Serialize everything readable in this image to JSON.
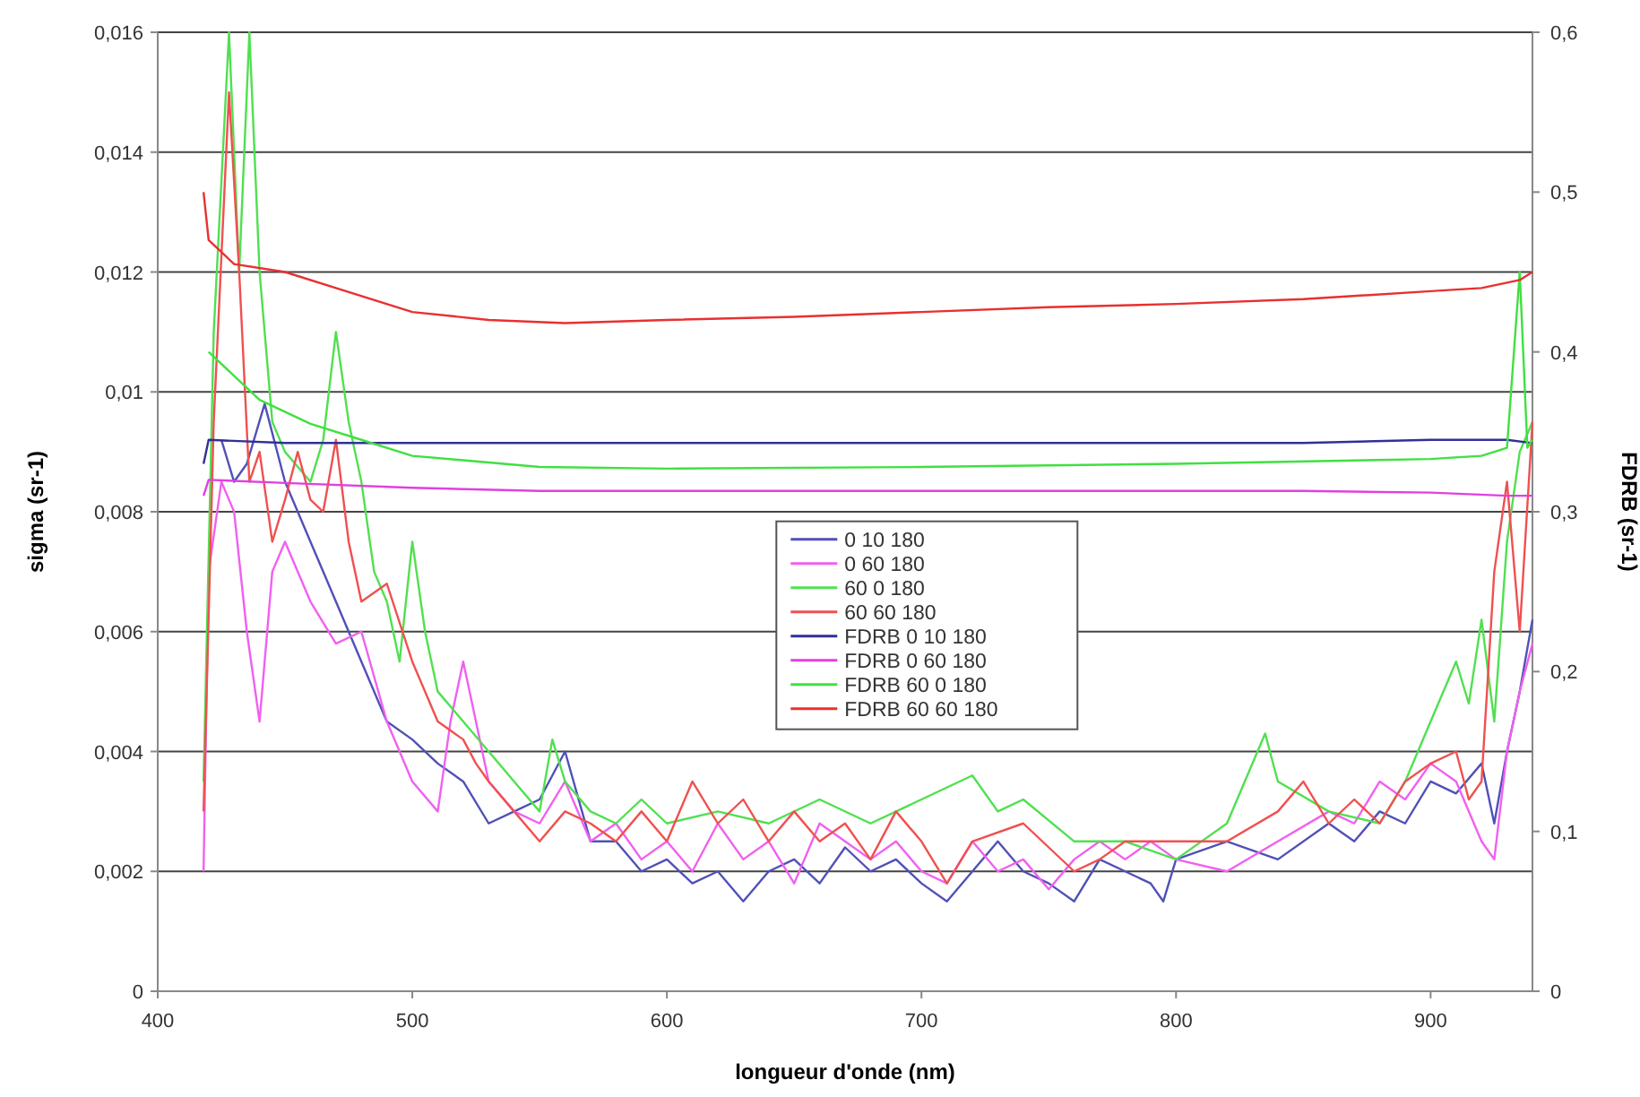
{
  "chart_data": {
    "type": "line",
    "xlabel": "longueur d'onde (nm)",
    "ylabel": "sigma (sr-1)",
    "y2label": "FDRB (sr-1)",
    "xlim": [
      400,
      940
    ],
    "xticks": [
      400,
      500,
      600,
      700,
      800,
      900
    ],
    "ylim": [
      0,
      0.016
    ],
    "yticks": [
      0,
      {
        "value": 0.002,
        "label": "0,002"
      },
      {
        "value": 0.004,
        "label": "0,004"
      },
      {
        "value": 0.006,
        "label": "0,006"
      },
      {
        "value": 0.008,
        "label": "0,008"
      },
      {
        "value": 0.01,
        "label": "0,01"
      },
      {
        "value": 0.012,
        "label": "0,012"
      },
      {
        "value": 0.014,
        "label": "0,014"
      },
      {
        "value": 0.016,
        "label": "0,016"
      }
    ],
    "y2lim": [
      0,
      0.6
    ],
    "y2ticks": [
      0,
      {
        "value": 0.1,
        "label": "0,1"
      },
      {
        "value": 0.2,
        "label": "0,2"
      },
      {
        "value": 0.3,
        "label": "0,3"
      },
      {
        "value": 0.4,
        "label": "0,4"
      },
      {
        "value": 0.5,
        "label": "0,5"
      },
      {
        "value": 0.6,
        "label": "0,6"
      }
    ],
    "grid": "y",
    "legend": "center",
    "marker": "none",
    "line_style": "solid",
    "series": [
      {
        "name": "0 10 180",
        "color": "#5050b8",
        "x": [
          425,
          430,
          435,
          442,
          450,
          460,
          470,
          480,
          490,
          500,
          510,
          520,
          530,
          540,
          550,
          560,
          570,
          580,
          590,
          600,
          610,
          620,
          630,
          640,
          650,
          660,
          670,
          680,
          690,
          700,
          710,
          720,
          730,
          740,
          750,
          760,
          770,
          780,
          790,
          795,
          800,
          820,
          840,
          860,
          870,
          880,
          890,
          900,
          910,
          920,
          925,
          930,
          935,
          940
        ],
        "values": [
          0.0092,
          0.0085,
          0.0088,
          0.0098,
          0.0085,
          0.0075,
          0.0065,
          0.0055,
          0.0045,
          0.0042,
          0.0038,
          0.0035,
          0.0028,
          0.003,
          0.0032,
          0.004,
          0.0025,
          0.0025,
          0.002,
          0.0022,
          0.0018,
          0.002,
          0.0015,
          0.002,
          0.0022,
          0.0018,
          0.0024,
          0.002,
          0.0022,
          0.0018,
          0.0015,
          0.002,
          0.0025,
          0.002,
          0.0018,
          0.0015,
          0.0022,
          0.002,
          0.0018,
          0.0015,
          0.0022,
          0.0025,
          0.0022,
          0.0028,
          0.0025,
          0.003,
          0.0028,
          0.0035,
          0.0033,
          0.0038,
          0.0028,
          0.004,
          0.005,
          0.0062
        ]
      },
      {
        "name": "0 60 180",
        "color": "#f060f0",
        "x": [
          418,
          420,
          425,
          430,
          435,
          440,
          445,
          450,
          460,
          470,
          480,
          490,
          500,
          510,
          515,
          520,
          530,
          540,
          550,
          560,
          570,
          580,
          590,
          600,
          610,
          620,
          630,
          640,
          650,
          660,
          670,
          680,
          690,
          700,
          710,
          720,
          730,
          740,
          750,
          760,
          770,
          780,
          790,
          800,
          820,
          840,
          860,
          870,
          880,
          890,
          900,
          910,
          920,
          925,
          930,
          935,
          940
        ],
        "values": [
          0.002,
          0.007,
          0.0085,
          0.008,
          0.006,
          0.0045,
          0.007,
          0.0075,
          0.0065,
          0.0058,
          0.006,
          0.0045,
          0.0035,
          0.003,
          0.0045,
          0.0055,
          0.0035,
          0.003,
          0.0028,
          0.0035,
          0.0025,
          0.0028,
          0.0022,
          0.0025,
          0.002,
          0.0028,
          0.0022,
          0.0025,
          0.0018,
          0.0028,
          0.0025,
          0.0022,
          0.0025,
          0.002,
          0.0018,
          0.0025,
          0.002,
          0.0022,
          0.0017,
          0.0022,
          0.0025,
          0.0022,
          0.0025,
          0.0022,
          0.002,
          0.0025,
          0.003,
          0.0028,
          0.0035,
          0.0032,
          0.0038,
          0.0035,
          0.0025,
          0.0022,
          0.004,
          0.005,
          0.0058
        ]
      },
      {
        "name": "60 0 180",
        "color": "#50e050",
        "x": [
          418,
          422,
          428,
          432,
          436,
          440,
          445,
          450,
          460,
          465,
          470,
          475,
          480,
          485,
          490,
          495,
          500,
          505,
          510,
          520,
          530,
          540,
          550,
          555,
          560,
          570,
          580,
          590,
          600,
          620,
          640,
          660,
          680,
          700,
          720,
          730,
          740,
          760,
          780,
          800,
          820,
          835,
          840,
          860,
          880,
          890,
          900,
          910,
          915,
          920,
          925,
          930,
          935,
          940
        ],
        "values": [
          0.0035,
          0.011,
          0.016,
          0.012,
          0.016,
          0.012,
          0.0095,
          0.009,
          0.0085,
          0.0092,
          0.011,
          0.0095,
          0.0085,
          0.007,
          0.0065,
          0.0055,
          0.0075,
          0.006,
          0.005,
          0.0045,
          0.004,
          0.0035,
          0.003,
          0.0042,
          0.0035,
          0.003,
          0.0028,
          0.0032,
          0.0028,
          0.003,
          0.0028,
          0.0032,
          0.0028,
          0.0032,
          0.0036,
          0.003,
          0.0032,
          0.0025,
          0.0025,
          0.0022,
          0.0028,
          0.0043,
          0.0035,
          0.003,
          0.0028,
          0.0035,
          0.0045,
          0.0055,
          0.0048,
          0.0062,
          0.0045,
          0.0075,
          0.009,
          0.0095
        ]
      },
      {
        "name": "60 60 180",
        "color": "#f05050",
        "x": [
          418,
          422,
          428,
          432,
          436,
          440,
          445,
          450,
          455,
          460,
          465,
          470,
          475,
          480,
          490,
          500,
          510,
          520,
          525,
          530,
          540,
          550,
          560,
          570,
          580,
          590,
          600,
          610,
          620,
          630,
          640,
          650,
          660,
          670,
          680,
          690,
          700,
          710,
          720,
          740,
          760,
          770,
          780,
          800,
          820,
          840,
          850,
          860,
          870,
          880,
          890,
          900,
          910,
          915,
          920,
          925,
          930,
          935,
          940
        ],
        "values": [
          0.003,
          0.0095,
          0.015,
          0.012,
          0.0085,
          0.009,
          0.0075,
          0.0082,
          0.009,
          0.0082,
          0.008,
          0.0092,
          0.0075,
          0.0065,
          0.0068,
          0.0055,
          0.0045,
          0.0042,
          0.0038,
          0.0035,
          0.003,
          0.0025,
          0.003,
          0.0028,
          0.0025,
          0.003,
          0.0025,
          0.0035,
          0.0028,
          0.0032,
          0.0025,
          0.003,
          0.0025,
          0.0028,
          0.0022,
          0.003,
          0.0025,
          0.0018,
          0.0025,
          0.0028,
          0.002,
          0.0022,
          0.0025,
          0.0025,
          0.0025,
          0.003,
          0.0035,
          0.0028,
          0.0032,
          0.0028,
          0.0035,
          0.0038,
          0.004,
          0.0032,
          0.0035,
          0.007,
          0.0085,
          0.006,
          0.0095
        ]
      },
      {
        "name": "FDRB 0 10 180",
        "color": "#303098",
        "axis": "y2",
        "x": [
          418,
          420,
          450,
          500,
          550,
          600,
          650,
          700,
          750,
          800,
          850,
          900,
          930,
          940
        ],
        "values": [
          0.33,
          0.345,
          0.343,
          0.343,
          0.343,
          0.343,
          0.343,
          0.343,
          0.343,
          0.343,
          0.343,
          0.345,
          0.345,
          0.343
        ]
      },
      {
        "name": "FDRB 0 60 180",
        "color": "#e040e0",
        "axis": "y2",
        "x": [
          418,
          420,
          450,
          500,
          550,
          600,
          650,
          700,
          750,
          800,
          850,
          900,
          930,
          940
        ],
        "values": [
          0.31,
          0.32,
          0.318,
          0.315,
          0.313,
          0.313,
          0.313,
          0.313,
          0.313,
          0.313,
          0.313,
          0.312,
          0.31,
          0.31
        ]
      },
      {
        "name": "FDRB 60 0 180",
        "color": "#40e040",
        "axis": "y2",
        "x": [
          420,
          440,
          460,
          480,
          500,
          550,
          600,
          700,
          800,
          900,
          920,
          930,
          935,
          938,
          940
        ],
        "values": [
          0.4,
          0.37,
          0.355,
          0.345,
          0.335,
          0.328,
          0.327,
          0.328,
          0.33,
          0.333,
          0.335,
          0.34,
          0.45,
          0.34,
          0.345
        ]
      },
      {
        "name": "FDRB 60 60 180",
        "color": "#e83030",
        "axis": "y2",
        "x": [
          418,
          420,
          430,
          450,
          470,
          500,
          530,
          560,
          600,
          650,
          700,
          750,
          800,
          850,
          900,
          920,
          935,
          940
        ],
        "values": [
          0.5,
          0.47,
          0.455,
          0.45,
          0.44,
          0.425,
          0.42,
          0.418,
          0.42,
          0.422,
          0.425,
          0.428,
          0.43,
          0.433,
          0.438,
          0.44,
          0.445,
          0.45
        ]
      }
    ]
  }
}
